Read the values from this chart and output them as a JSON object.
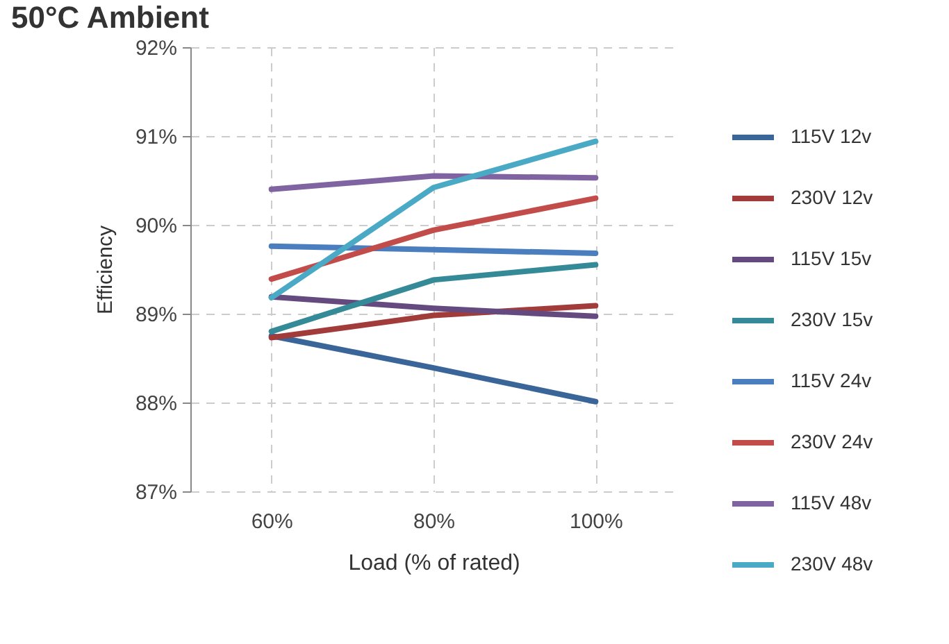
{
  "chart_data": {
    "type": "line",
    "title": "50°C Ambient",
    "xlabel": "Load (% of rated)",
    "ylabel": "Efficiency",
    "categories": [
      "60%",
      "80%",
      "100%"
    ],
    "ylim": [
      87,
      92
    ],
    "yticks": [
      {
        "value": 87,
        "label": "87%"
      },
      {
        "value": 88,
        "label": "88%"
      },
      {
        "value": 89,
        "label": "89%"
      },
      {
        "value": 90,
        "label": "90%"
      },
      {
        "value": 91,
        "label": "91%"
      },
      {
        "value": 92,
        "label": "92%"
      }
    ],
    "grid": true,
    "legend": "right",
    "line_style": "solid",
    "marker": "none",
    "series": [
      {
        "name": "115V 12v",
        "color": "#3a6598",
        "values": [
          88.75,
          88.39,
          88.01
        ]
      },
      {
        "name": "230V 12v",
        "color": "#a13c3a",
        "values": [
          88.73,
          88.98,
          89.09
        ]
      },
      {
        "name": "115V 15v",
        "color": "#654a80",
        "values": [
          89.19,
          89.06,
          88.97
        ]
      },
      {
        "name": "230V 15v",
        "color": "#358a98",
        "values": [
          88.8,
          89.38,
          89.55
        ]
      },
      {
        "name": "115V 24v",
        "color": "#4a7ebf",
        "values": [
          89.76,
          89.72,
          89.68
        ]
      },
      {
        "name": "230V 24v",
        "color": "#c24c4a",
        "values": [
          89.39,
          89.94,
          90.3
        ]
      },
      {
        "name": "115V 48v",
        "color": "#8064a2",
        "values": [
          90.4,
          90.55,
          90.53
        ]
      },
      {
        "name": "230V 48v",
        "color": "#4aaac6",
        "values": [
          89.18,
          90.42,
          90.94
        ]
      }
    ]
  }
}
